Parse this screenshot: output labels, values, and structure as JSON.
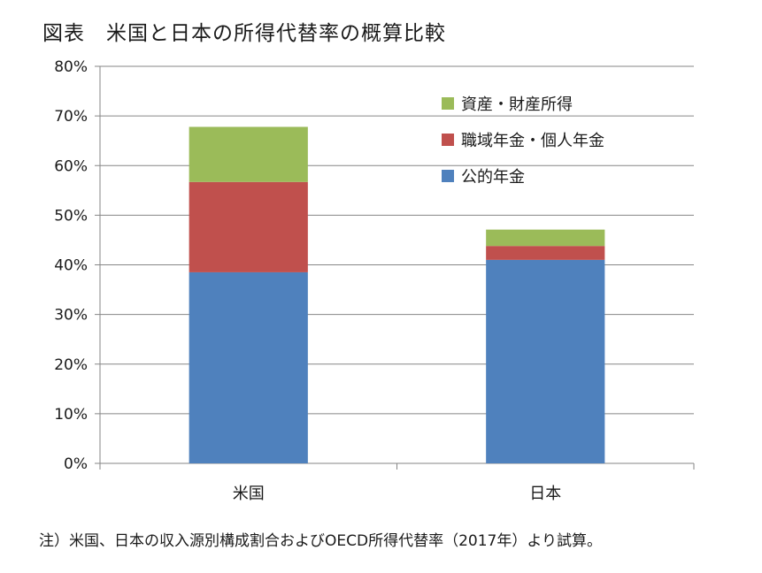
{
  "title": "図表　米国と日本の所得代替率の概算比較",
  "note": "注）米国、日本の収入源別構成割合およびOECD所得代替率（2017年）より試算。",
  "chart_data": {
    "type": "bar",
    "stacked": true,
    "categories": [
      "米国",
      "日本"
    ],
    "series": [
      {
        "name": "公的年金",
        "color": "#4F81BD",
        "values": [
          38.5,
          41.0
        ]
      },
      {
        "name": "職域年金・個人年金",
        "color": "#C0504D",
        "values": [
          18.2,
          2.8
        ]
      },
      {
        "name": "資産・財産所得",
        "color": "#9BBB59",
        "values": [
          11.1,
          3.3
        ]
      }
    ],
    "ylim": [
      0,
      80
    ],
    "yticks": [
      "0%",
      "10%",
      "20%",
      "30%",
      "40%",
      "50%",
      "60%",
      "70%",
      "80%"
    ],
    "grid": true,
    "legend": "top-right",
    "legend_order": [
      "資産・財産所得",
      "職域年金・個人年金",
      "公的年金"
    ]
  }
}
